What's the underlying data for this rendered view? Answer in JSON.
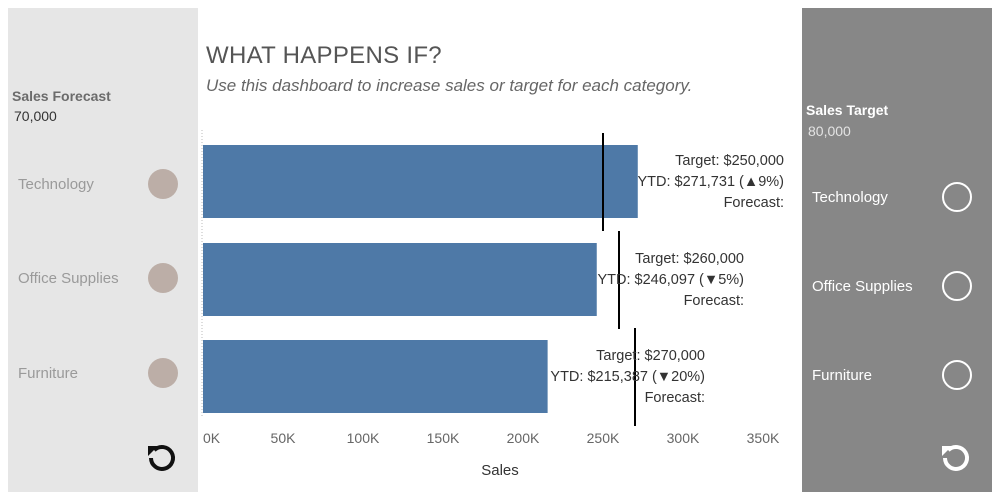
{
  "header": {
    "title": "WHAT HAPPENS IF?",
    "subtitle": "Use this dashboard to increase sales or target for each category."
  },
  "forecast_panel": {
    "title": "Sales Forecast",
    "value": "70,000",
    "categories": [
      "Technology",
      "Office Supplies",
      "Furniture"
    ],
    "background": "#e6e6e6",
    "dot_color": "#bcaea7"
  },
  "target_panel": {
    "title": "Sales Target",
    "value": "80,000",
    "categories": [
      "Technology",
      "Office Supplies",
      "Furniture"
    ],
    "background": "#878787"
  },
  "chart_data": {
    "type": "bar",
    "orientation": "horizontal",
    "categories": [
      "Technology",
      "Office Supplies",
      "Furniture"
    ],
    "series": [
      {
        "name": "YTD Sales",
        "values": [
          271731,
          246097,
          215387
        ],
        "color": "#4e79a7"
      },
      {
        "name": "Target",
        "values": [
          250000,
          260000,
          270000
        ],
        "color": "#000000"
      }
    ],
    "labels": [
      {
        "target": "Target: $250,000",
        "ytd": "YTD: $271,731 (▲9%)",
        "forecast": "Forecast:"
      },
      {
        "target": "Target: $260,000",
        "ytd": "YTD: $246,097 (▼5%)",
        "forecast": "Forecast:"
      },
      {
        "target": "Target: $270,000",
        "ytd": "YTD: $215,387 (▼20%)",
        "forecast": "Forecast:"
      }
    ],
    "xlabel": "Sales",
    "ylabel": "",
    "xlim": [
      0,
      350000
    ],
    "xticks": [
      0,
      50000,
      100000,
      150000,
      200000,
      250000,
      300000,
      350000
    ],
    "xtick_labels": [
      "0K",
      "50K",
      "100K",
      "150K",
      "200K",
      "250K",
      "300K",
      "350K"
    ]
  }
}
